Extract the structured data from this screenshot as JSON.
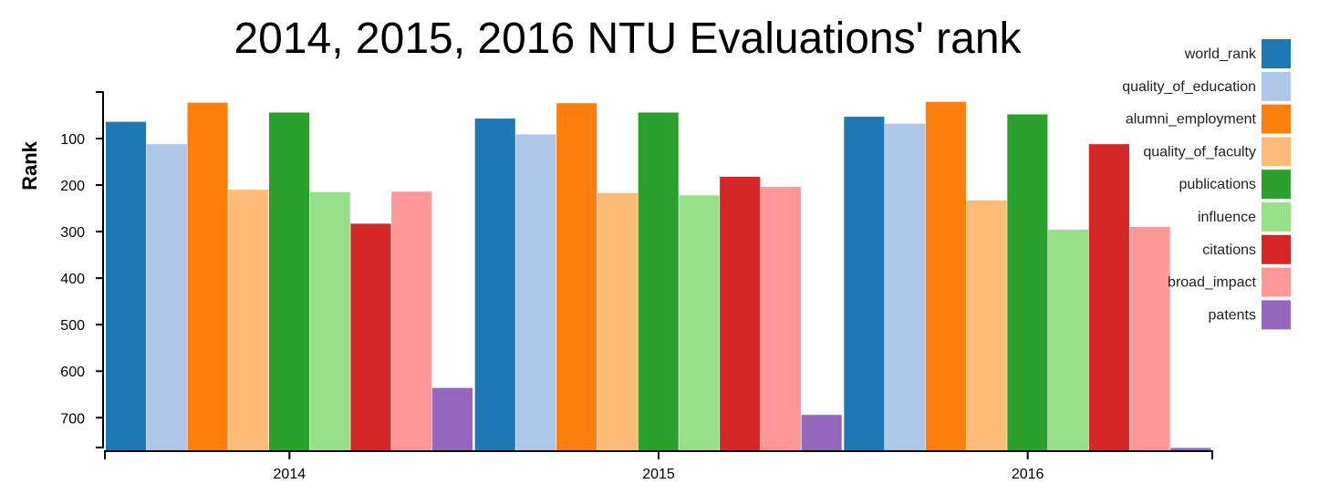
{
  "chart_data": {
    "type": "bar",
    "title": "2014, 2015, 2016 NTU Evaluations' rank",
    "xlabel": "",
    "ylabel": "Rank",
    "y_inverted": true,
    "ylim": [
      0,
      770
    ],
    "yticks": [
      100,
      200,
      300,
      400,
      500,
      600,
      700
    ],
    "grid": false,
    "legend_position": "right",
    "categories": [
      "2014",
      "2015",
      "2016"
    ],
    "series": [
      {
        "name": "world_rank",
        "color": "#1f77b4",
        "values": [
          64,
          57,
          53
        ]
      },
      {
        "name": "quality_of_education",
        "color": "#aec7e8",
        "values": [
          112,
          91,
          68
        ]
      },
      {
        "name": "alumni_employment",
        "color": "#ff7f0e",
        "values": [
          23,
          24,
          21
        ]
      },
      {
        "name": "quality_of_faculty",
        "color": "#ffbb78",
        "values": [
          210,
          217,
          233
        ]
      },
      {
        "name": "publications",
        "color": "#2ca02c",
        "values": [
          44,
          44,
          48
        ]
      },
      {
        "name": "influence",
        "color": "#98df8a",
        "values": [
          215,
          222,
          296
        ]
      },
      {
        "name": "citations",
        "color": "#d62728",
        "values": [
          283,
          182,
          112
        ]
      },
      {
        "name": "broad_impact",
        "color": "#ff9896",
        "values": [
          214,
          204,
          290
        ]
      },
      {
        "name": "patents",
        "color": "#9467bd",
        "values": [
          636,
          694,
          765
        ]
      }
    ]
  }
}
